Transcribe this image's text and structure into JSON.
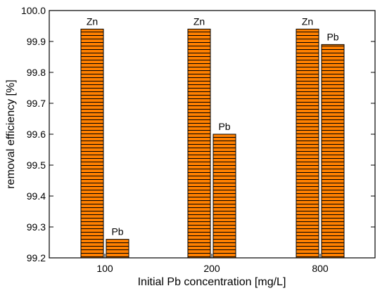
{
  "chart_data": {
    "type": "bar",
    "categories": [
      "100",
      "200",
      "800"
    ],
    "series": [
      {
        "name": "Zn",
        "values": [
          99.94,
          99.94,
          99.94
        ]
      },
      {
        "name": "Pb",
        "values": [
          99.26,
          99.6,
          99.89
        ]
      }
    ],
    "bar_labels": [
      [
        "Zn",
        "Zn",
        "Zn"
      ],
      [
        "Pb",
        "Pb",
        "Pb"
      ]
    ],
    "xlabel": "Initial Pb concentration [mg/L]",
    "ylabel": "removal efficiency [%]",
    "ylim": [
      99.2,
      100.0
    ],
    "yticks": [
      "99.2",
      "99.3",
      "99.4",
      "99.5",
      "99.6",
      "99.7",
      "99.8",
      "99.9",
      "100.0"
    ],
    "grid": false,
    "legend": "none",
    "colors": {
      "bar_fill": "#ff8000",
      "bar_hatch": "#000000"
    }
  }
}
